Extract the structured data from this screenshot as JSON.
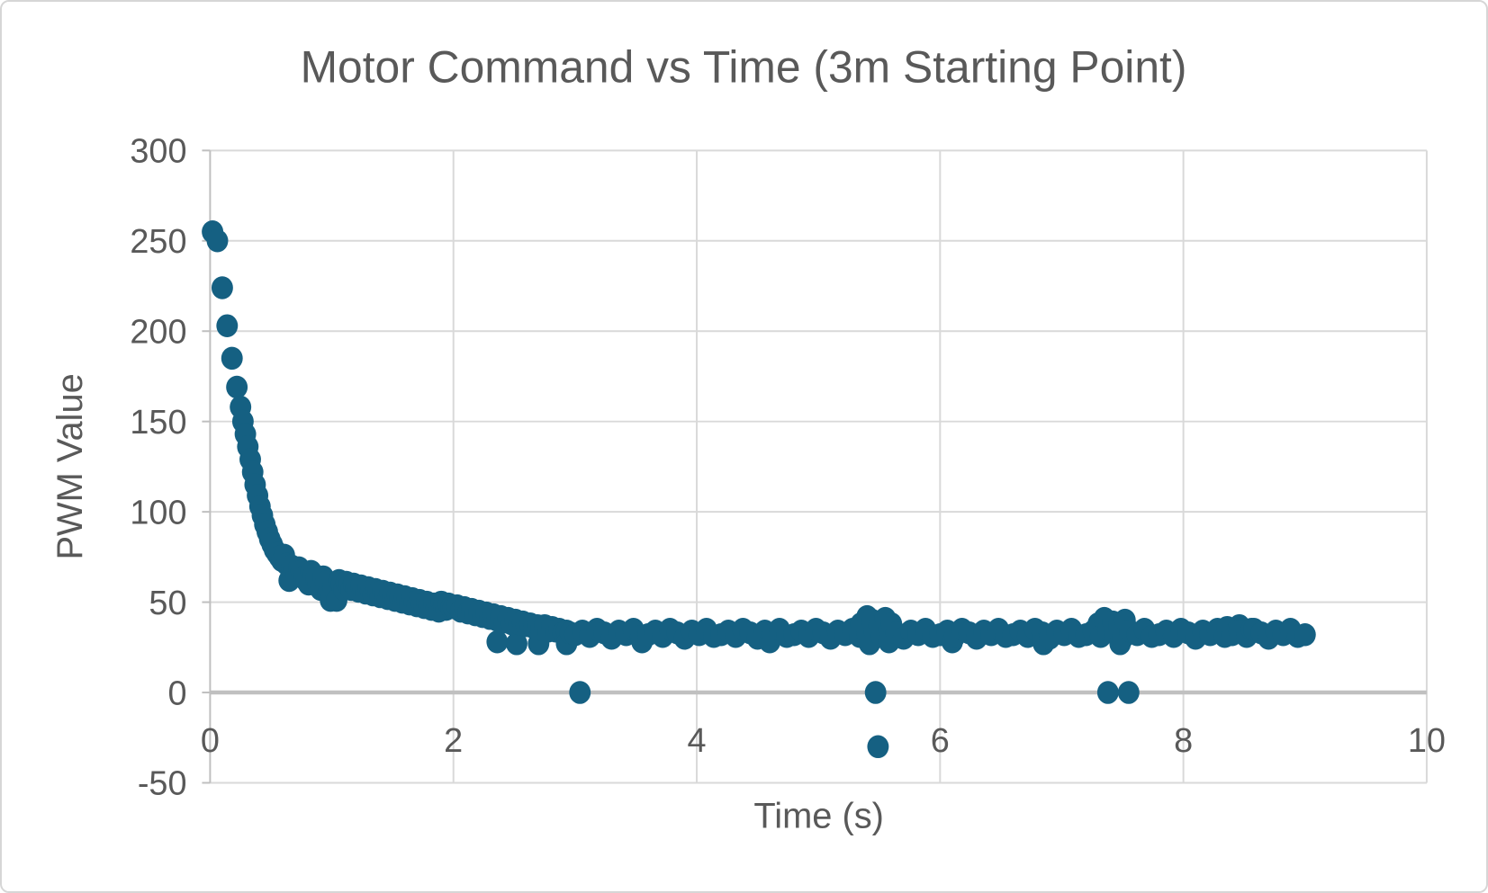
{
  "chart_data": {
    "type": "scatter",
    "title": "Motor Command vs Time (3m Starting Point)",
    "xlabel": "Time (s)",
    "ylabel": "PWM Value",
    "xlim": [
      0,
      10
    ],
    "ylim": [
      -50,
      300
    ],
    "x_ticks": [
      0,
      2,
      4,
      6,
      8,
      10
    ],
    "y_ticks": [
      300,
      250,
      200,
      150,
      100,
      50,
      0,
      -50
    ],
    "grid": true,
    "legend": false,
    "marker_color": "#156082",
    "series_name": "Motor Command",
    "points": [
      [
        0.02,
        255
      ],
      [
        0.06,
        250
      ],
      [
        0.1,
        224
      ],
      [
        0.14,
        203
      ],
      [
        0.18,
        185
      ],
      [
        0.22,
        169
      ],
      [
        0.25,
        158
      ],
      [
        0.27,
        150
      ],
      [
        0.29,
        143
      ],
      [
        0.31,
        136
      ],
      [
        0.33,
        129
      ],
      [
        0.35,
        122
      ],
      [
        0.37,
        115
      ],
      [
        0.39,
        109
      ],
      [
        0.41,
        103
      ],
      [
        0.43,
        98
      ],
      [
        0.45,
        93
      ],
      [
        0.47,
        89
      ],
      [
        0.49,
        85
      ],
      [
        0.51,
        82
      ],
      [
        0.53,
        79
      ],
      [
        0.55,
        77
      ],
      [
        0.57,
        75
      ],
      [
        0.59,
        73
      ],
      [
        0.61,
        76
      ],
      [
        0.63,
        71
      ],
      [
        0.65,
        62
      ],
      [
        0.67,
        70
      ],
      [
        0.69,
        68
      ],
      [
        0.71,
        65
      ],
      [
        0.73,
        69
      ],
      [
        0.75,
        67
      ],
      [
        0.77,
        64
      ],
      [
        0.79,
        62
      ],
      [
        0.81,
        60
      ],
      [
        0.83,
        67
      ],
      [
        0.85,
        65
      ],
      [
        0.87,
        63
      ],
      [
        0.89,
        60
      ],
      [
        0.91,
        57
      ],
      [
        0.93,
        64
      ],
      [
        0.95,
        61
      ],
      [
        0.97,
        55
      ],
      [
        0.99,
        51
      ],
      [
        1.01,
        58
      ],
      [
        1.04,
        51
      ],
      [
        1.06,
        62
      ],
      [
        1.08,
        60
      ],
      [
        1.1,
        57
      ],
      [
        1.12,
        61
      ],
      [
        1.14,
        59
      ],
      [
        1.16,
        57
      ],
      [
        1.18,
        60
      ],
      [
        1.2,
        58
      ],
      [
        1.22,
        56
      ],
      [
        1.24,
        59
      ],
      [
        1.26,
        57
      ],
      [
        1.28,
        55
      ],
      [
        1.3,
        58
      ],
      [
        1.32,
        56
      ],
      [
        1.34,
        54
      ],
      [
        1.36,
        57
      ],
      [
        1.38,
        55
      ],
      [
        1.4,
        53
      ],
      [
        1.42,
        56
      ],
      [
        1.44,
        54
      ],
      [
        1.46,
        52
      ],
      [
        1.48,
        55
      ],
      [
        1.5,
        53
      ],
      [
        1.52,
        51
      ],
      [
        1.54,
        54
      ],
      [
        1.56,
        52
      ],
      [
        1.58,
        50
      ],
      [
        1.6,
        53
      ],
      [
        1.62,
        51
      ],
      [
        1.64,
        49
      ],
      [
        1.66,
        52
      ],
      [
        1.68,
        50
      ],
      [
        1.7,
        48
      ],
      [
        1.72,
        51
      ],
      [
        1.74,
        49
      ],
      [
        1.76,
        47
      ],
      [
        1.78,
        50
      ],
      [
        1.8,
        48
      ],
      [
        1.82,
        46
      ],
      [
        1.84,
        49
      ],
      [
        1.86,
        47
      ],
      [
        1.88,
        45
      ],
      [
        1.9,
        50
      ],
      [
        1.92,
        48
      ],
      [
        1.94,
        46
      ],
      [
        1.96,
        49
      ],
      [
        1.98,
        47
      ],
      [
        2.0,
        47
      ],
      [
        2.03,
        48
      ],
      [
        2.06,
        45
      ],
      [
        2.09,
        47
      ],
      [
        2.12,
        44
      ],
      [
        2.15,
        46
      ],
      [
        2.18,
        43
      ],
      [
        2.21,
        45
      ],
      [
        2.24,
        42
      ],
      [
        2.27,
        44
      ],
      [
        2.3,
        41
      ],
      [
        2.33,
        43
      ],
      [
        2.36,
        40
      ],
      [
        2.36,
        28
      ],
      [
        2.39,
        42
      ],
      [
        2.42,
        39
      ],
      [
        2.45,
        41
      ],
      [
        2.48,
        38
      ],
      [
        2.51,
        40
      ],
      [
        2.52,
        27
      ],
      [
        2.54,
        38
      ],
      [
        2.57,
        39
      ],
      [
        2.6,
        37
      ],
      [
        2.63,
        38
      ],
      [
        2.66,
        36
      ],
      [
        2.69,
        37
      ],
      [
        2.7,
        27
      ],
      [
        2.72,
        35
      ],
      [
        2.75,
        37
      ],
      [
        2.78,
        34
      ],
      [
        2.81,
        36
      ],
      [
        2.84,
        34
      ],
      [
        2.87,
        35
      ],
      [
        2.9,
        33
      ],
      [
        2.93,
        34
      ],
      [
        2.93,
        27
      ],
      [
        2.96,
        33
      ],
      [
        3.0,
        32
      ],
      [
        3.06,
        34
      ],
      [
        3.12,
        31
      ],
      [
        3.18,
        35
      ],
      [
        3.24,
        33
      ],
      [
        3.3,
        30
      ],
      [
        3.36,
        34
      ],
      [
        3.42,
        32
      ],
      [
        3.48,
        35
      ],
      [
        3.54,
        31
      ],
      [
        3.55,
        28
      ],
      [
        3.6,
        32
      ],
      [
        3.66,
        34
      ],
      [
        3.72,
        31
      ],
      [
        3.78,
        35
      ],
      [
        3.84,
        33
      ],
      [
        3.9,
        30
      ],
      [
        3.96,
        34
      ],
      [
        4.02,
        32
      ],
      [
        4.08,
        35
      ],
      [
        4.14,
        31
      ],
      [
        4.2,
        32
      ],
      [
        4.26,
        34
      ],
      [
        4.32,
        31
      ],
      [
        4.38,
        35
      ],
      [
        4.44,
        33
      ],
      [
        4.5,
        30
      ],
      [
        4.56,
        34
      ],
      [
        4.6,
        28
      ],
      [
        4.62,
        32
      ],
      [
        4.68,
        35
      ],
      [
        4.74,
        31
      ],
      [
        4.8,
        32
      ],
      [
        4.86,
        34
      ],
      [
        4.92,
        31
      ],
      [
        4.98,
        35
      ],
      [
        5.04,
        33
      ],
      [
        5.1,
        30
      ],
      [
        5.16,
        34
      ],
      [
        5.22,
        32
      ],
      [
        5.28,
        35
      ],
      [
        5.34,
        31
      ],
      [
        5.35,
        38
      ],
      [
        5.4,
        42
      ],
      [
        5.4,
        32
      ],
      [
        5.42,
        27
      ],
      [
        5.44,
        40
      ],
      [
        5.46,
        34
      ],
      [
        5.5,
        37
      ],
      [
        5.52,
        31
      ],
      [
        5.55,
        41
      ],
      [
        5.58,
        35
      ],
      [
        5.58,
        28
      ],
      [
        5.6,
        38
      ],
      [
        5.64,
        33
      ],
      [
        5.7,
        30
      ],
      [
        5.76,
        34
      ],
      [
        5.82,
        32
      ],
      [
        5.88,
        35
      ],
      [
        5.94,
        31
      ],
      [
        6.0,
        32
      ],
      [
        6.06,
        34
      ],
      [
        6.1,
        28
      ],
      [
        6.12,
        31
      ],
      [
        6.18,
        35
      ],
      [
        6.24,
        33
      ],
      [
        6.3,
        30
      ],
      [
        6.36,
        34
      ],
      [
        6.42,
        32
      ],
      [
        6.48,
        35
      ],
      [
        6.54,
        31
      ],
      [
        6.6,
        32
      ],
      [
        6.66,
        34
      ],
      [
        6.72,
        31
      ],
      [
        6.78,
        35
      ],
      [
        6.84,
        33
      ],
      [
        6.85,
        27
      ],
      [
        6.9,
        30
      ],
      [
        6.96,
        34
      ],
      [
        7.02,
        32
      ],
      [
        7.08,
        35
      ],
      [
        7.14,
        31
      ],
      [
        7.2,
        32
      ],
      [
        7.26,
        34
      ],
      [
        7.3,
        38
      ],
      [
        7.32,
        31
      ],
      [
        7.35,
        41
      ],
      [
        7.38,
        35
      ],
      [
        7.42,
        39
      ],
      [
        7.44,
        33
      ],
      [
        7.47,
        37
      ],
      [
        7.48,
        27
      ],
      [
        7.5,
        30
      ],
      [
        7.52,
        40
      ],
      [
        7.56,
        34
      ],
      [
        7.62,
        32
      ],
      [
        7.68,
        35
      ],
      [
        7.74,
        31
      ],
      [
        7.8,
        32
      ],
      [
        7.86,
        34
      ],
      [
        7.92,
        31
      ],
      [
        7.98,
        35
      ],
      [
        8.04,
        33
      ],
      [
        8.1,
        30
      ],
      [
        8.16,
        34
      ],
      [
        8.22,
        32
      ],
      [
        8.28,
        35
      ],
      [
        8.34,
        31
      ],
      [
        8.36,
        36
      ],
      [
        8.4,
        32
      ],
      [
        8.46,
        37
      ],
      [
        8.46,
        34
      ],
      [
        8.52,
        31
      ],
      [
        8.56,
        35
      ],
      [
        8.58,
        35
      ],
      [
        8.64,
        33
      ],
      [
        8.7,
        30
      ],
      [
        8.76,
        34
      ],
      [
        8.82,
        32
      ],
      [
        8.88,
        35
      ],
      [
        8.94,
        31
      ],
      [
        9.0,
        32
      ],
      [
        3.04,
        0
      ],
      [
        5.47,
        0
      ],
      [
        7.38,
        0
      ],
      [
        7.55,
        0
      ],
      [
        5.49,
        -30
      ]
    ]
  },
  "styles": {
    "text_color": "#595959",
    "gridline_color": "#d9d9d9",
    "axis_line_color": "#bfbfbf",
    "zero_line_color": "#c0c0c0",
    "background": "#ffffff",
    "border_color": "#d6d6d6",
    "marker_color": "#156082"
  }
}
